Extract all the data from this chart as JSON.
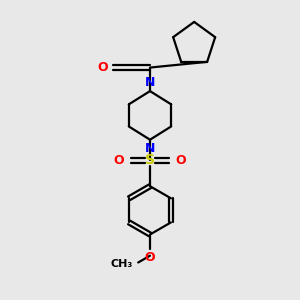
{
  "background_color": "#e8e8e8",
  "bond_color": "#000000",
  "N_color": "#0000ff",
  "O_color": "#ff0000",
  "S_color": "#cccc00",
  "line_width": 1.6,
  "figsize": [
    3.0,
    3.0
  ],
  "dpi": 100,
  "xlim": [
    0,
    10
  ],
  "ylim": [
    0,
    10
  ]
}
